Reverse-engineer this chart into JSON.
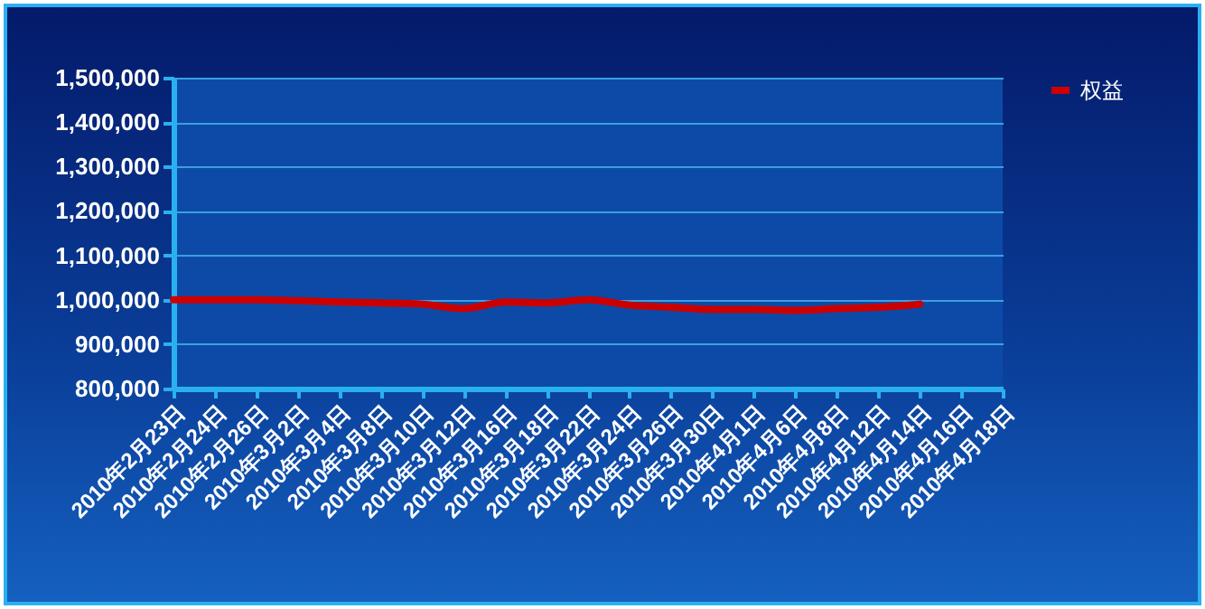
{
  "chart_data": {
    "type": "line",
    "categories": [
      "2010年2月23日",
      "2010年2月24日",
      "2010年2月26日",
      "2010年3月2日",
      "2010年3月4日",
      "2010年3月8日",
      "2010年3月10日",
      "2010年3月12日",
      "2010年3月16日",
      "2010年3月18日",
      "2010年3月22日",
      "2010年3月24日",
      "2010年3月26日",
      "2010年3月30日",
      "2010年4月1日",
      "2010年4月6日",
      "2010年4月8日",
      "2010年4月12日",
      "2010年4月14日",
      "2010年4月16日",
      "2010年4月18日"
    ],
    "series": [
      {
        "name": "权益",
        "color": "#cc0000",
        "values": [
          1000000,
          1000000,
          1000000,
          998000,
          995000,
          993000,
          990000,
          980000,
          995000,
          993000,
          1000000,
          988000,
          983000,
          978000,
          978000,
          976000,
          980000,
          983000,
          990000,
          null,
          null
        ]
      }
    ],
    "ylim": [
      800000,
      1500000
    ],
    "yticks": [
      {
        "value": 800000,
        "label": "800,000"
      },
      {
        "value": 900000,
        "label": "900,000"
      },
      {
        "value": 1000000,
        "label": "1,000,000"
      },
      {
        "value": 1100000,
        "label": "1,100,000"
      },
      {
        "value": 1200000,
        "label": "1,200,000"
      },
      {
        "value": 1300000,
        "label": "1,300,000"
      },
      {
        "value": 1400000,
        "label": "1,400,000"
      },
      {
        "value": 1500000,
        "label": "1,500,000"
      }
    ],
    "grid": "y",
    "legend": "right",
    "marker": "none",
    "line_style": "solid"
  }
}
